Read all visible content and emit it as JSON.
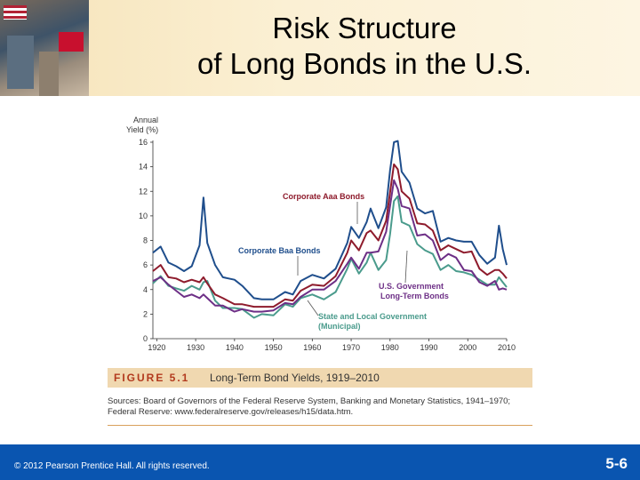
{
  "slide": {
    "title_line1": "Risk Structure",
    "title_line2": "of Long Bonds in the U.S.",
    "figure_label": "FIGURE 5.1",
    "figure_caption": "Long-Term Bond Yields, 1919–2010",
    "sources_line1": "Sources: Board of Governors of the Federal Reserve System, Banking and Monetary Statistics, 1941–1970;",
    "sources_line2": "Federal Reserve: www.federalreserve.gov/releases/h15/data.htm.",
    "copyright": "© 2012 Pearson Prentice Hall. All rights reserved.",
    "slide_number": "5-6"
  },
  "chart_data": {
    "type": "line",
    "ylabel_line1": "Annual",
    "ylabel_line2": "Yield (%)",
    "ylim": [
      0,
      16
    ],
    "xlim": [
      1919,
      2010
    ],
    "x_ticks": [
      "1920",
      "1930",
      "1940",
      "1950",
      "1960",
      "1970",
      "1980",
      "1990",
      "2000",
      "2010"
    ],
    "y_ticks": [
      "0",
      "2",
      "4",
      "6",
      "8",
      "10",
      "12",
      "14",
      "16"
    ],
    "grid": false,
    "x": [
      1919,
      1921,
      1923,
      1925,
      1927,
      1929,
      1931,
      1932,
      1933,
      1935,
      1937,
      1940,
      1942,
      1945,
      1947,
      1950,
      1953,
      1955,
      1957,
      1960,
      1963,
      1966,
      1969,
      1970,
      1972,
      1974,
      1975,
      1977,
      1979,
      1980,
      1981,
      1982,
      1983,
      1985,
      1987,
      1989,
      1991,
      1993,
      1995,
      1997,
      1999,
      2001,
      2003,
      2005,
      2007,
      2008,
      2009,
      2010
    ],
    "series": [
      {
        "name": "Corporate Baa Bonds",
        "color": "#1f4e8c",
        "values": [
          7.0,
          7.5,
          6.2,
          5.9,
          5.5,
          5.9,
          7.6,
          11.5,
          7.8,
          6.0,
          5.0,
          4.8,
          4.3,
          3.3,
          3.2,
          3.2,
          3.8,
          3.6,
          4.7,
          5.2,
          4.9,
          5.7,
          7.8,
          9.1,
          8.2,
          9.5,
          10.6,
          9.0,
          10.7,
          13.7,
          16.0,
          16.1,
          13.6,
          12.7,
          10.6,
          10.2,
          10.4,
          7.9,
          8.2,
          8.0,
          7.9,
          7.9,
          6.8,
          6.1,
          6.6,
          9.2,
          7.3,
          6.0
        ]
      },
      {
        "name": "Corporate Aaa Bonds",
        "color": "#8e1b2c",
        "values": [
          5.5,
          6.0,
          5.0,
          4.9,
          4.6,
          4.8,
          4.6,
          5.0,
          4.5,
          3.6,
          3.3,
          2.8,
          2.8,
          2.6,
          2.6,
          2.6,
          3.2,
          3.1,
          3.9,
          4.4,
          4.3,
          5.1,
          7.0,
          8.0,
          7.2,
          8.6,
          8.8,
          8.0,
          9.6,
          11.9,
          14.2,
          13.8,
          12.0,
          11.4,
          9.4,
          9.3,
          8.8,
          7.2,
          7.6,
          7.3,
          7.0,
          7.1,
          5.7,
          5.2,
          5.6,
          5.6,
          5.3,
          4.9
        ]
      },
      {
        "name": "U.S. Government Long-Term Bonds",
        "color": "#6d2f86",
        "values": [
          4.7,
          5.0,
          4.4,
          3.9,
          3.4,
          3.6,
          3.3,
          3.6,
          3.3,
          2.7,
          2.7,
          2.2,
          2.4,
          2.2,
          2.2,
          2.3,
          2.9,
          2.8,
          3.4,
          4.0,
          4.0,
          4.7,
          6.1,
          6.6,
          5.7,
          7.0,
          7.0,
          7.1,
          8.7,
          10.8,
          12.9,
          12.2,
          10.8,
          10.6,
          8.4,
          8.5,
          8.0,
          6.4,
          6.9,
          6.6,
          5.6,
          5.5,
          4.6,
          4.3,
          4.7,
          4.0,
          4.1,
          4.0
        ]
      },
      {
        "name": "State and Local Government (Municipal)",
        "color": "#4a9b8c",
        "values": [
          4.5,
          5.1,
          4.3,
          4.1,
          3.9,
          4.3,
          4.0,
          4.6,
          4.7,
          3.1,
          2.5,
          2.5,
          2.4,
          1.7,
          2.0,
          1.9,
          2.8,
          2.6,
          3.3,
          3.6,
          3.2,
          3.8,
          5.7,
          6.5,
          5.3,
          6.2,
          7.0,
          5.6,
          6.4,
          8.5,
          11.2,
          11.6,
          9.5,
          9.2,
          7.7,
          7.2,
          6.9,
          5.6,
          6.0,
          5.5,
          5.4,
          5.2,
          4.8,
          4.4,
          4.4,
          5.0,
          4.6,
          4.2
        ]
      }
    ],
    "annotations": [
      {
        "text": "Corporate Aaa Bonds"
      },
      {
        "text": "Corporate Baa Bonds"
      },
      {
        "text_line1": "U.S. Government",
        "text_line2": "Long-Term Bonds"
      },
      {
        "text_line1": "State and Local Government",
        "text_line2": "(Municipal)"
      }
    ]
  }
}
